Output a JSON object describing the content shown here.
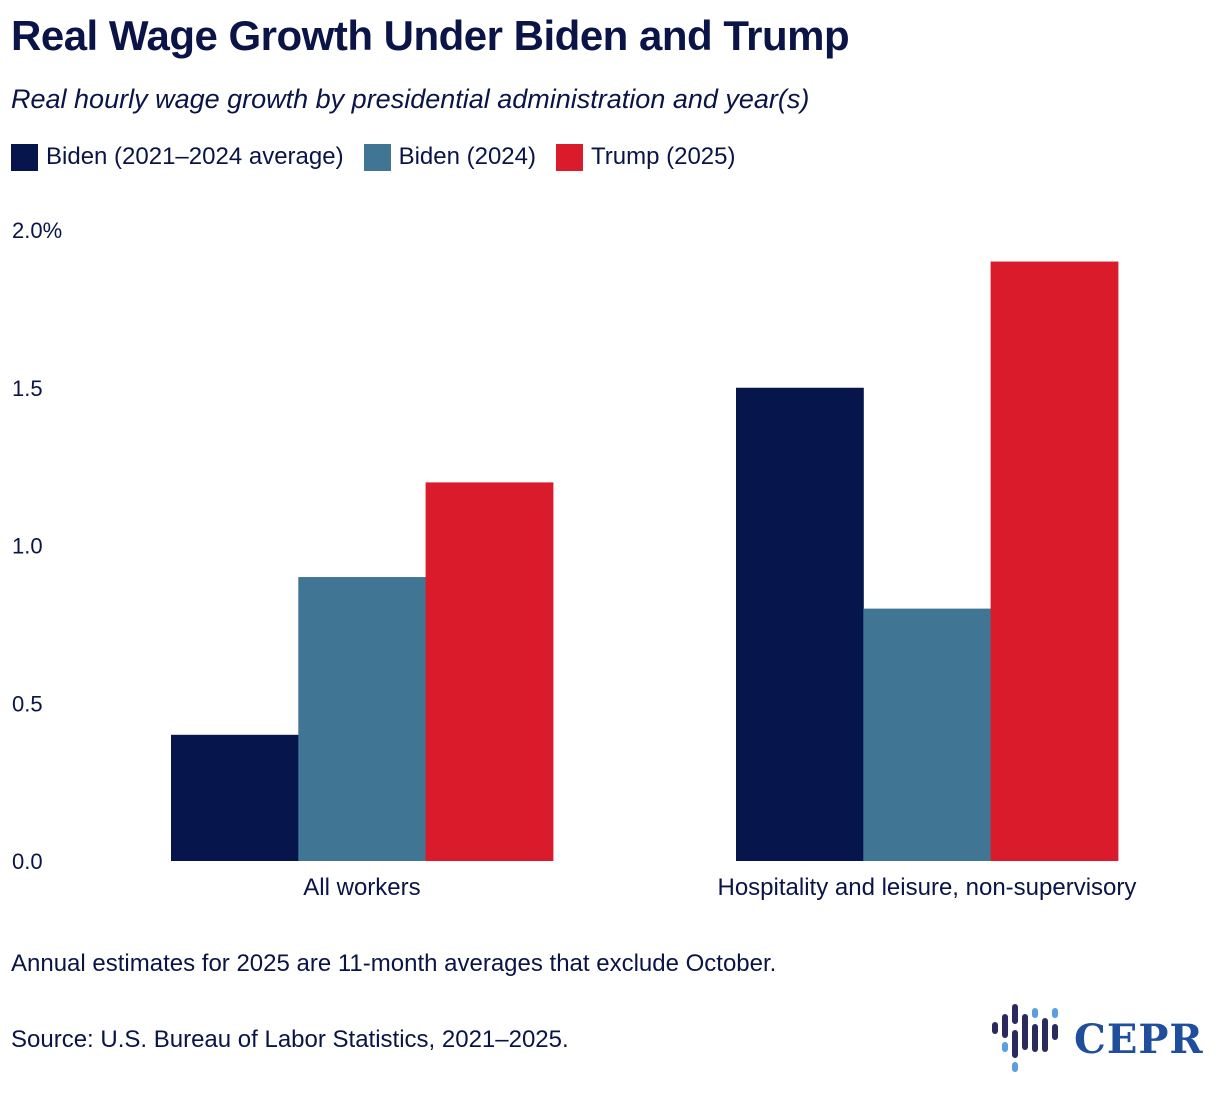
{
  "title": "Real Wage Growth Under Biden and Trump",
  "subtitle": "Real hourly wage growth by presidential administration and year(s)",
  "legend": [
    {
      "label": "Biden (2021–2024 average)",
      "color": "#06164d"
    },
    {
      "label": "Biden (2024)",
      "color": "#417594"
    },
    {
      "label": "Trump (2025)",
      "color": "#da1b2c"
    }
  ],
  "note": "Annual estimates for 2025 are 11-month averages that exclude October.",
  "source": "Source: U.S. Bureau of Labor Statistics, 2021–2025.",
  "logo": {
    "text": "CEPR",
    "color": "#1f4e9c"
  },
  "chart_data": {
    "type": "bar",
    "title": "Real Wage Growth Under Biden and Trump",
    "subtitle": "Real hourly wage growth by presidential administration and year(s)",
    "xlabel": "",
    "ylabel": "",
    "ylim": [
      0,
      2.0
    ],
    "yticks": [
      0.0,
      0.5,
      1.0,
      1.5,
      2.0
    ],
    "ytick_labels": [
      "0.0",
      "0.5",
      "1.0",
      "1.5",
      "2.0%"
    ],
    "grid": false,
    "legend_position": "top-left",
    "categories": [
      "All workers",
      "Hospitality and leisure, non-supervisory"
    ],
    "series": [
      {
        "name": "Biden (2021–2024 average)",
        "color": "#06164d",
        "values": [
          0.4,
          1.5
        ]
      },
      {
        "name": "Biden (2024)",
        "color": "#417594",
        "values": [
          0.9,
          0.8
        ]
      },
      {
        "name": "Trump (2025)",
        "color": "#da1b2c",
        "values": [
          1.2,
          1.9
        ]
      }
    ]
  }
}
